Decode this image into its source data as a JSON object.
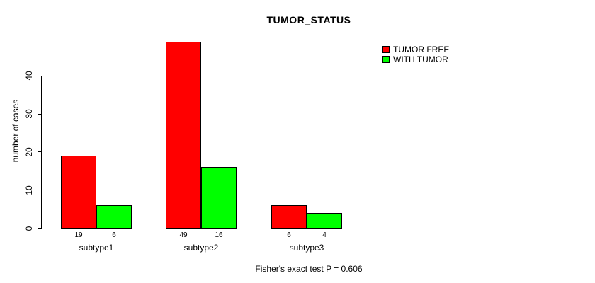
{
  "chart_data": {
    "type": "bar",
    "title": "TUMOR_STATUS",
    "categories": [
      "subtype1",
      "subtype2",
      "subtype3"
    ],
    "series": [
      {
        "name": "TUMOR FREE",
        "color": "#FF0000",
        "values": [
          19,
          49,
          6
        ]
      },
      {
        "name": "WITH TUMOR",
        "color": "#00FF00",
        "values": [
          6,
          16,
          4
        ]
      }
    ],
    "xlabel": "",
    "ylabel": "number of cases",
    "yticks": [
      0,
      10,
      20,
      30,
      40
    ],
    "ylim": [
      0,
      50
    ],
    "grid": false,
    "legend_position": "top-right",
    "bar_value_labels_shown": true,
    "annotation": "Fisher's exact test P = 0.606",
    "colors": {
      "bar_border": "#000000",
      "axis": "#000000",
      "text": "#000000",
      "background": "#FFFFFF"
    }
  }
}
